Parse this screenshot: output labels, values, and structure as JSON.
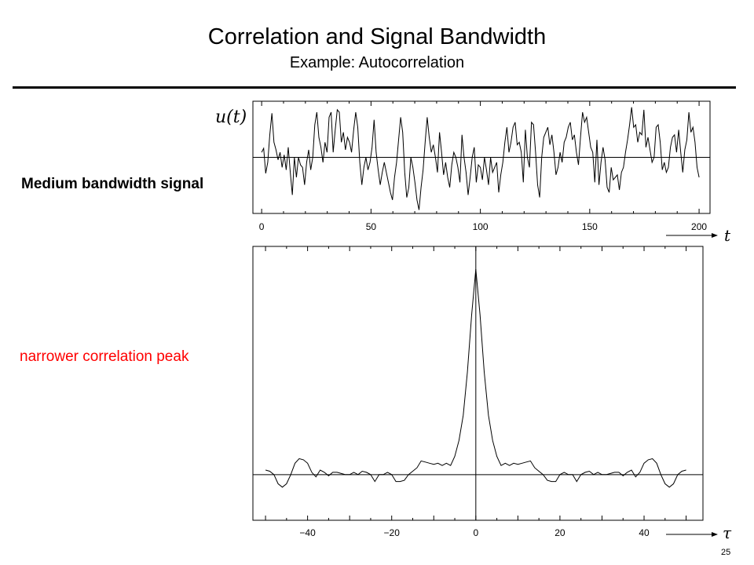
{
  "header": {
    "title": "Correlation and Signal Bandwidth",
    "subtitle": "Example:  Autocorrelation"
  },
  "labels": {
    "bandwidth": "Medium bandwidth signal",
    "peak": "narrower correlation peak"
  },
  "page_number": "25",
  "colors": {
    "annotation": "#ff0000",
    "trace": "#000000"
  },
  "chart_data": [
    {
      "type": "line",
      "title": "",
      "ylabel": "u(t)",
      "xlabel": "t",
      "xlim": [
        -4,
        205
      ],
      "ylim": [
        -1.12,
        1.12
      ],
      "x_ticks": [
        0,
        50,
        100,
        150,
        200
      ],
      "x_tick_labels": [
        "0",
        "50",
        "100",
        "150",
        "200"
      ],
      "grid": false,
      "series": [
        {
          "values": [
            0.1,
            0.18,
            -0.32,
            -0.1,
            0.45,
            0.88,
            0.3,
            0.15,
            -0.05,
            0.1,
            -0.2,
            0.05,
            -0.25,
            0.2,
            -0.3,
            -0.75,
            0.0,
            -0.4,
            0.0,
            -0.15,
            -0.2,
            -0.55,
            -0.1,
            0.15,
            -0.25,
            0.0,
            0.65,
            0.9,
            0.4,
            0.2,
            -0.1,
            0.3,
            0.1,
            0.8,
            0.9,
            0.1,
            0.55,
            0.95,
            0.9,
            0.3,
            0.5,
            0.15,
            0.4,
            0.3,
            0.1,
            0.55,
            0.9,
            0.6,
            -0.1,
            -0.55,
            -0.2,
            0.0,
            -0.25,
            -0.1,
            0.2,
            0.75,
            0.1,
            -0.25,
            -0.55,
            -0.3,
            -0.1,
            -0.3,
            -0.5,
            -0.7,
            -0.85,
            -0.4,
            -0.1,
            0.35,
            0.8,
            0.5,
            -0.3,
            -0.8,
            -0.6,
            0.0,
            -0.2,
            -0.5,
            -0.85,
            -1.05,
            -0.6,
            -0.25,
            0.3,
            0.8,
            0.4,
            0.1,
            0.25,
            0.0,
            -0.3,
            0.5,
            0.1,
            -0.35,
            -0.1,
            -0.4,
            -0.6,
            -0.15,
            0.1,
            0.0,
            -0.2,
            -0.5,
            0.45,
            0.0,
            -0.3,
            -0.75,
            -0.4,
            0.0,
            0.2,
            -0.5,
            -0.15,
            -0.2,
            -0.45,
            0.0,
            -0.25,
            -0.55,
            0.0,
            -0.3,
            -0.2,
            -0.1,
            -0.7,
            -0.35,
            -0.1,
            0.3,
            0.6,
            0.1,
            0.3,
            0.6,
            0.7,
            0.25,
            0.3,
            0.1,
            -0.5,
            0.55,
            0.0,
            -0.2,
            0.7,
            0.65,
            0.1,
            -0.55,
            -0.8,
            0.0,
            0.4,
            0.5,
            0.6,
            0.25,
            0.45,
            0.1,
            -0.35,
            -0.2,
            0.1,
            -0.1,
            0.3,
            0.4,
            0.6,
            0.7,
            0.35,
            0.45,
            0.1,
            -0.15,
            0.4,
            0.9,
            0.7,
            0.8,
            0.5,
            0.2,
            0.1,
            -0.5,
            0.35,
            -0.55,
            -0.1,
            0.2,
            -0.05,
            -0.6,
            -0.7,
            -0.2,
            -0.45,
            -0.4,
            -0.35,
            -0.65,
            -0.3,
            -0.2,
            0.1,
            0.35,
            0.65,
            1.0,
            0.6,
            0.65,
            0.3,
            0.5,
            0.45,
            0.95,
            0.2,
            0.4,
            0.15,
            -0.1,
            0.0,
            0.6,
            0.65,
            0.3,
            -0.25,
            -0.1,
            -0.3,
            -0.2,
            0.2,
            0.4,
            0.45,
            0.1,
            0.55,
            0.1,
            -0.3,
            0.15,
            0.35,
            0.9,
            0.5,
            0.6,
            0.3,
            -0.2,
            -0.4
          ]
        }
      ]
    },
    {
      "type": "line",
      "title": "",
      "xlabel": "τ",
      "ylabel": "",
      "xlim": [
        -53,
        54
      ],
      "ylim": [
        -0.2,
        1.0
      ],
      "x_ticks": [
        -40,
        -20,
        0,
        20,
        40
      ],
      "x_tick_labels": [
        "−40",
        "−20",
        "0",
        "20",
        "40"
      ],
      "grid": false,
      "series": [
        {
          "values": [
            [
              -50,
              0.02
            ],
            [
              -49,
              0.015
            ],
            [
              -48,
              0.0
            ],
            [
              -47,
              -0.04
            ],
            [
              -46,
              -0.055
            ],
            [
              -45,
              -0.04
            ],
            [
              -44,
              0.0
            ],
            [
              -43,
              0.05
            ],
            [
              -42,
              0.07
            ],
            [
              -41,
              0.065
            ],
            [
              -40,
              0.05
            ],
            [
              -39,
              0.01
            ],
            [
              -38,
              -0.01
            ],
            [
              -37,
              0.02
            ],
            [
              -36,
              0.01
            ],
            [
              -35,
              -0.005
            ],
            [
              -34,
              0.01
            ],
            [
              -33,
              0.01
            ],
            [
              -32,
              0.005
            ],
            [
              -31,
              0.0
            ],
            [
              -30,
              0.0
            ],
            [
              -29,
              0.01
            ],
            [
              -28,
              0.0
            ],
            [
              -27,
              0.015
            ],
            [
              -26,
              0.01
            ],
            [
              -25,
              0.0
            ],
            [
              -24,
              -0.03
            ],
            [
              -23,
              0.0
            ],
            [
              -22,
              0.0
            ],
            [
              -21,
              0.01
            ],
            [
              -20,
              0.0
            ],
            [
              -19,
              -0.03
            ],
            [
              -18,
              -0.03
            ],
            [
              -17,
              -0.025
            ],
            [
              -16,
              0.0
            ],
            [
              -15,
              0.015
            ],
            [
              -14,
              0.03
            ],
            [
              -13,
              0.06
            ],
            [
              -12,
              0.055
            ],
            [
              -11,
              0.05
            ],
            [
              -10,
              0.045
            ],
            [
              -9,
              0.05
            ],
            [
              -8,
              0.04
            ],
            [
              -7,
              0.05
            ],
            [
              -6,
              0.04
            ],
            [
              -5,
              0.08
            ],
            [
              -4,
              0.15
            ],
            [
              -3,
              0.26
            ],
            [
              -2,
              0.45
            ],
            [
              -1,
              0.7
            ],
            [
              0,
              0.9
            ],
            [
              1,
              0.7
            ],
            [
              2,
              0.45
            ],
            [
              3,
              0.26
            ],
            [
              4,
              0.15
            ],
            [
              5,
              0.08
            ],
            [
              6,
              0.04
            ],
            [
              7,
              0.05
            ],
            [
              8,
              0.04
            ],
            [
              9,
              0.05
            ],
            [
              10,
              0.045
            ],
            [
              11,
              0.05
            ],
            [
              12,
              0.055
            ],
            [
              13,
              0.06
            ],
            [
              14,
              0.03
            ],
            [
              15,
              0.015
            ],
            [
              16,
              0.0
            ],
            [
              17,
              -0.025
            ],
            [
              18,
              -0.03
            ],
            [
              19,
              -0.03
            ],
            [
              20,
              0.0
            ],
            [
              21,
              0.01
            ],
            [
              22,
              0.0
            ],
            [
              23,
              0.0
            ],
            [
              24,
              -0.03
            ],
            [
              25,
              0.0
            ],
            [
              26,
              0.01
            ],
            [
              27,
              0.015
            ],
            [
              28,
              0.0
            ],
            [
              29,
              0.01
            ],
            [
              30,
              0.0
            ],
            [
              31,
              0.0
            ],
            [
              32,
              0.005
            ],
            [
              33,
              0.01
            ],
            [
              34,
              0.01
            ],
            [
              35,
              -0.005
            ],
            [
              36,
              0.01
            ],
            [
              37,
              0.02
            ],
            [
              38,
              -0.01
            ],
            [
              39,
              0.01
            ],
            [
              40,
              0.05
            ],
            [
              41,
              0.065
            ],
            [
              42,
              0.07
            ],
            [
              43,
              0.05
            ],
            [
              44,
              0.0
            ],
            [
              45,
              -0.04
            ],
            [
              46,
              -0.055
            ],
            [
              47,
              -0.04
            ],
            [
              48,
              0.0
            ],
            [
              49,
              0.015
            ],
            [
              50,
              0.02
            ]
          ]
        }
      ]
    }
  ]
}
